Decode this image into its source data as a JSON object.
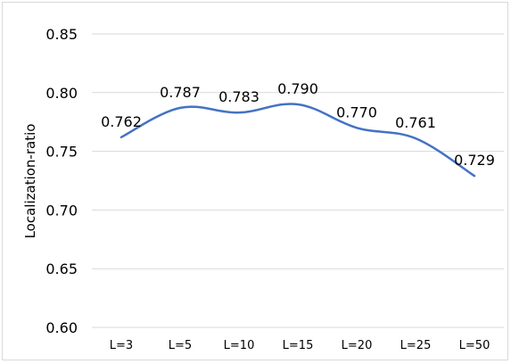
{
  "chart_data": {
    "type": "line",
    "categories": [
      "L=3",
      "L=5",
      "L=10",
      "L=15",
      "L=20",
      "L=25",
      "L=50"
    ],
    "series": [
      {
        "values": [
          0.762,
          0.787,
          0.783,
          0.79,
          0.77,
          0.761,
          0.729
        ],
        "data_labels": [
          "0.762",
          "0.787",
          "0.783",
          "0.790",
          "0.770",
          "0.761",
          "0.729"
        ],
        "color": "#4472c4",
        "smooth": true
      }
    ],
    "ylabel": "Localization-ratio",
    "ylim": [
      0.6,
      0.85
    ],
    "yticks": [
      0.6,
      0.65,
      0.7,
      0.75,
      0.8,
      0.85
    ],
    "ytick_labels": [
      "0.60",
      "0.65",
      "0.70",
      "0.75",
      "0.80",
      "0.85"
    ],
    "grid": true,
    "legend": "none",
    "gridline_color": "#d9d9d9"
  }
}
